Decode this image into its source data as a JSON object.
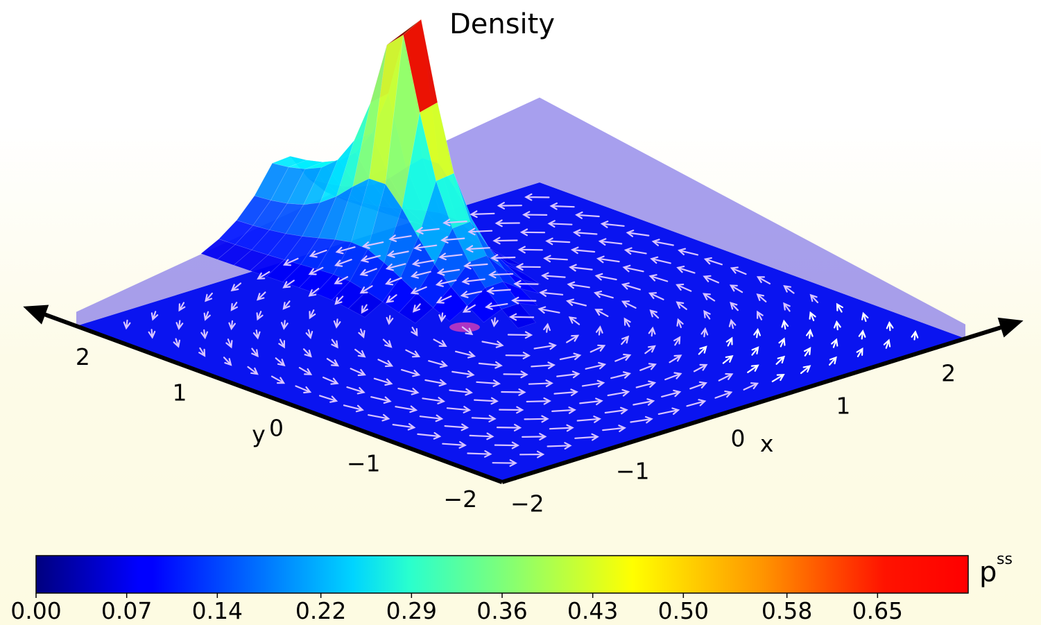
{
  "chart_data": {
    "type": "surface3d",
    "title": "Density",
    "xlabel": "x",
    "ylabel": "y",
    "xlim": [
      -2.2,
      2.2
    ],
    "ylim": [
      -2.2,
      2.2
    ],
    "x_ticks": [
      "−2",
      "−1",
      "0",
      "1",
      "2"
    ],
    "y_ticks": [
      "−2",
      "−1",
      "0",
      "1",
      "2"
    ],
    "x_tick_values": [
      -2,
      -1,
      0,
      1,
      2
    ],
    "y_tick_values": [
      -2,
      -1,
      0,
      1,
      2
    ],
    "surface": {
      "description_peak": {
        "x": -0.25,
        "y": 0.9,
        "value": 0.7
      },
      "edge_value": 0.2,
      "ridge_along_y": true
    },
    "quiver": {
      "color": "#d8c4ff",
      "pattern": "rotational",
      "center": [
        0.0,
        0.0
      ]
    },
    "colorbar": {
      "label": "p",
      "label_sup": "ss",
      "colormap": "jet",
      "vmin": 0.0,
      "vmax": 0.72,
      "ticks": [
        "0.00",
        "0.07",
        "0.14",
        "0.22",
        "0.29",
        "0.36",
        "0.43",
        "0.50",
        "0.58",
        "0.65"
      ],
      "tick_values": [
        0.0,
        0.07,
        0.14,
        0.22,
        0.29,
        0.36,
        0.43,
        0.5,
        0.58,
        0.65
      ]
    }
  }
}
